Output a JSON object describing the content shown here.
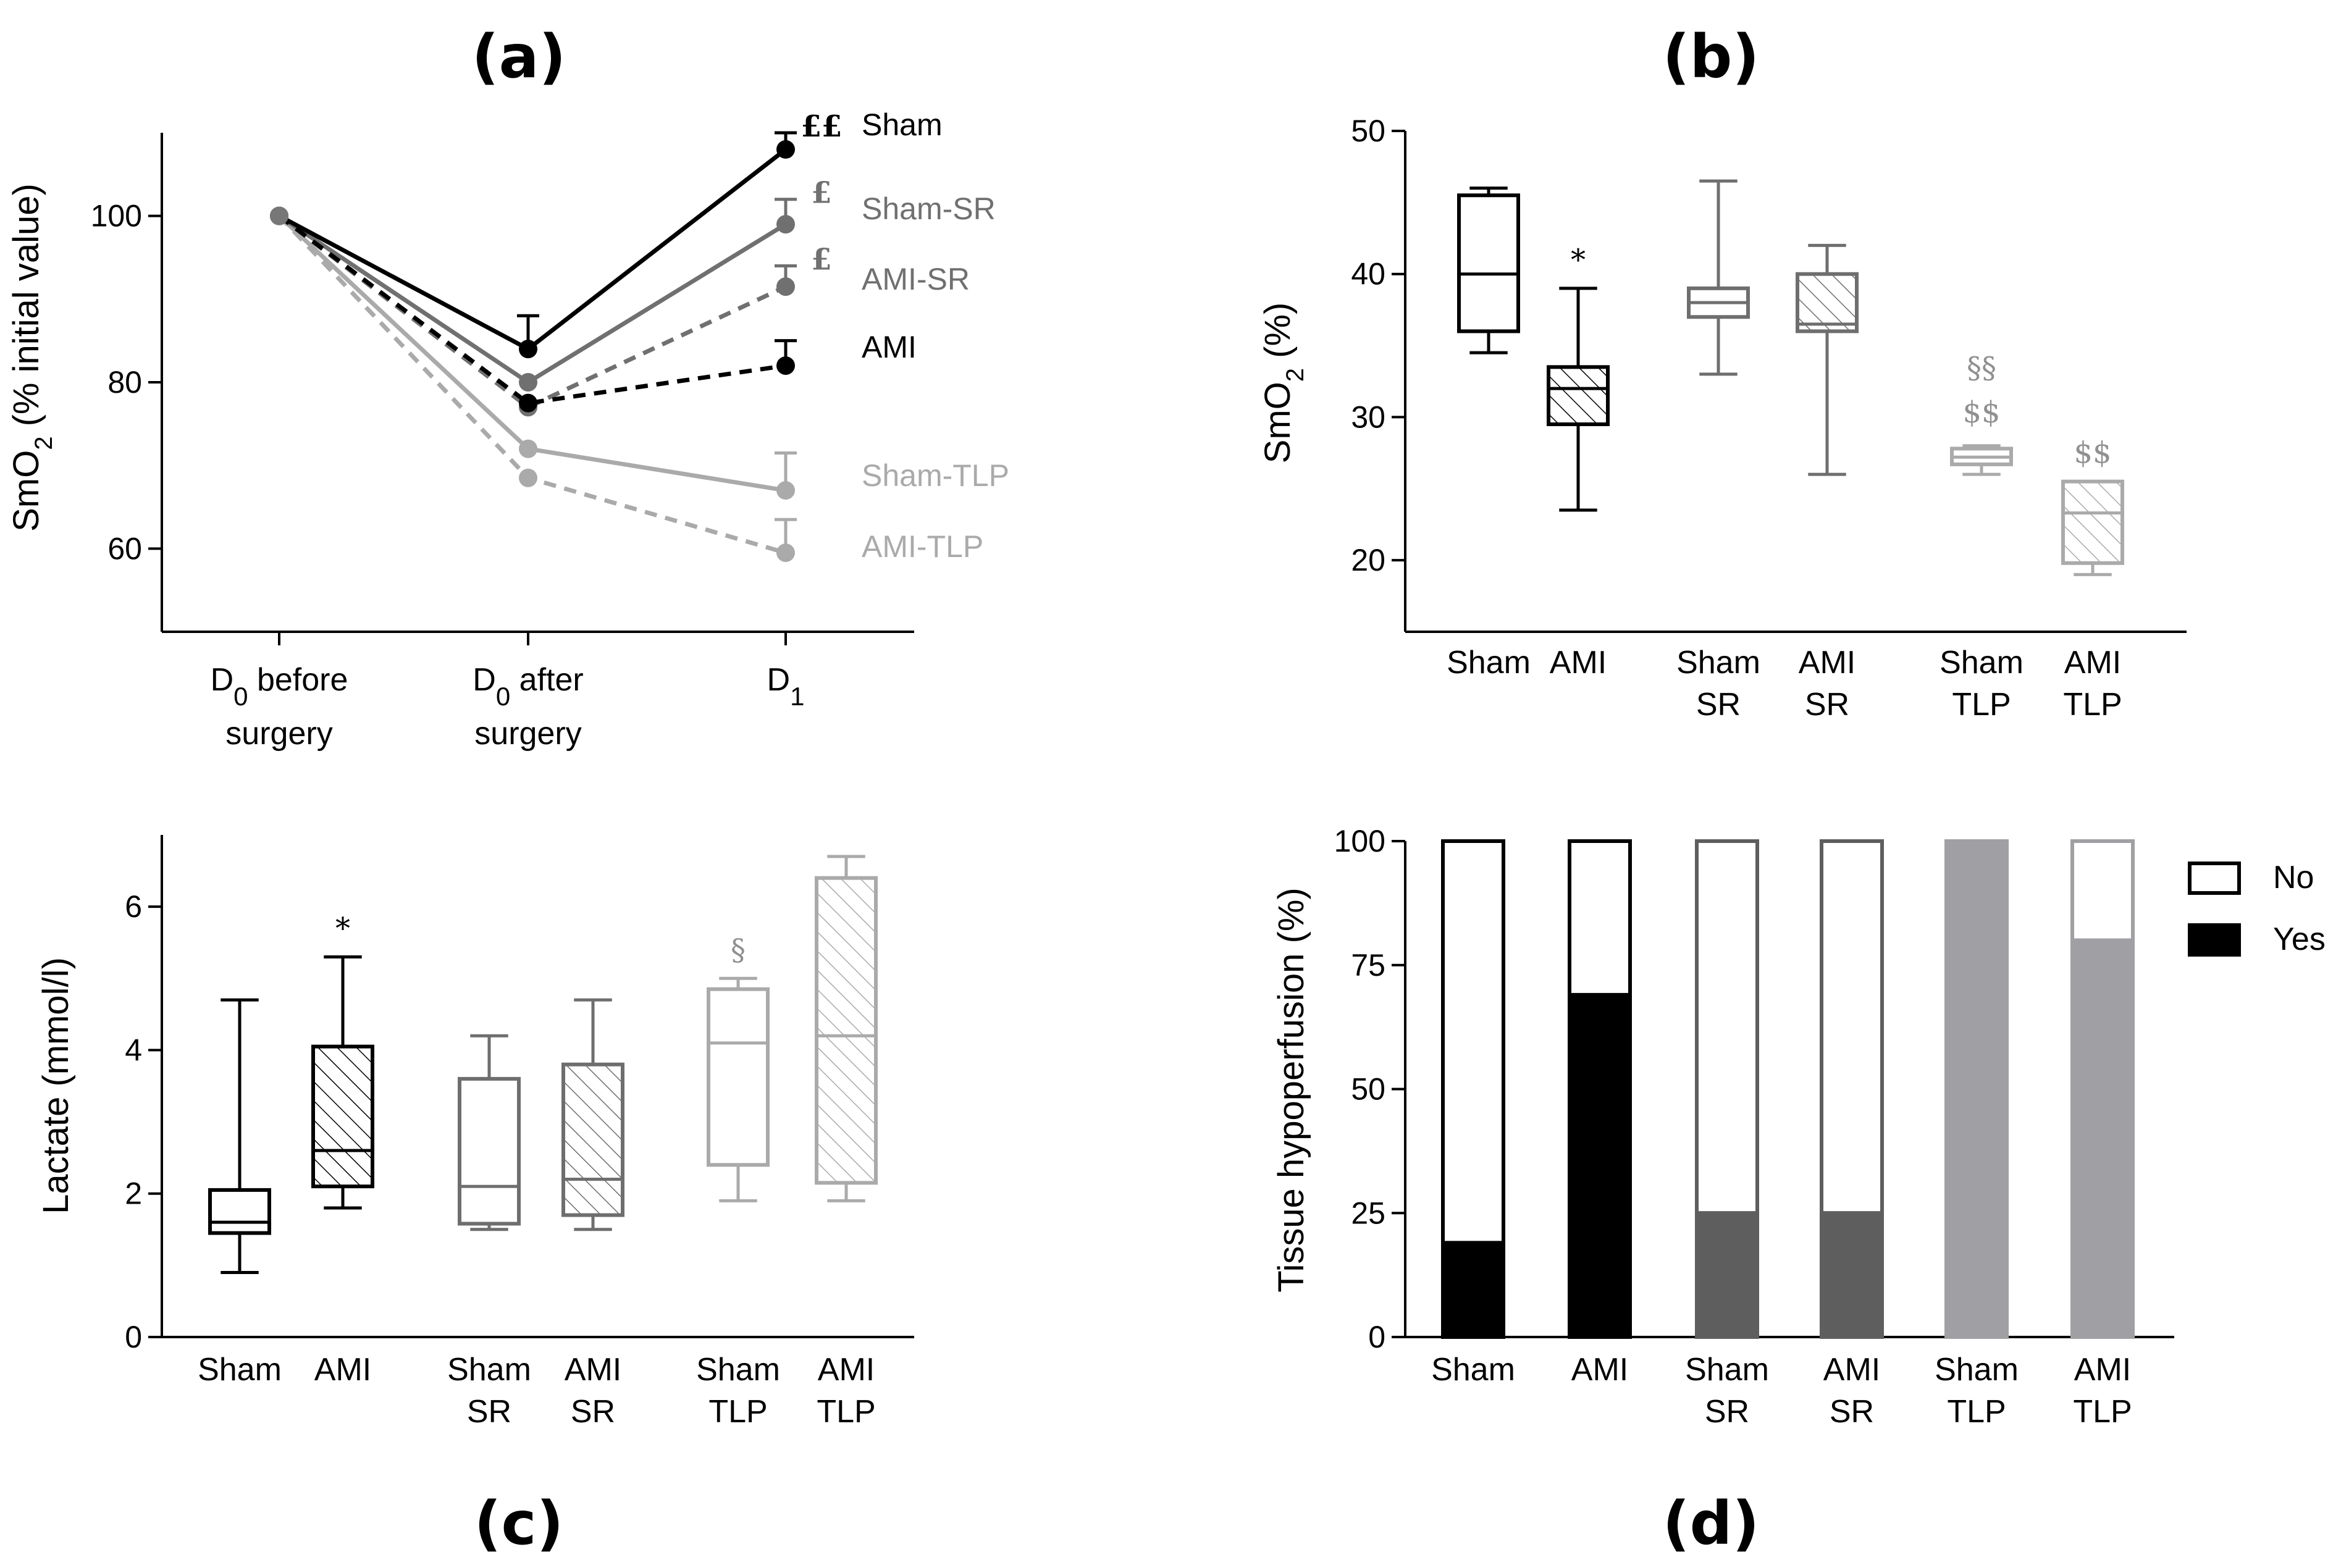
{
  "chart_data": [
    {
      "panel": "(a)",
      "type": "line",
      "ylabel": "SmO2 (% initial value)",
      "ylabel_main": "SmO",
      "ylabel_sub": "2",
      "ylabel_rest": " (% initial value)",
      "ylim": [
        50,
        110
      ],
      "yticks": [
        60,
        80,
        100
      ],
      "categories": [
        {
          "l1a": "D",
          "l1sub": "0",
          "l1b": " before",
          "l2": "surgery"
        },
        {
          "l1a": "D",
          "l1sub": "0",
          "l1b": " after",
          "l2": "surgery"
        },
        {
          "l1a": "D",
          "l1sub": "1",
          "l1b": "",
          "l2": ""
        }
      ],
      "series": [
        {
          "name": "Sham",
          "color": "#000000",
          "dash": false,
          "values": [
            100,
            84,
            108
          ],
          "errors": [
            0,
            4,
            2
          ],
          "annotation": "££"
        },
        {
          "name": "Sham-SR",
          "color": "#707070",
          "dash": false,
          "values": [
            100,
            80,
            99
          ],
          "errors": [
            0,
            0,
            3
          ],
          "annotation": "£"
        },
        {
          "name": "AMI-SR",
          "color": "#707070",
          "dash": true,
          "values": [
            100,
            77,
            91.5
          ],
          "errors": [
            0,
            0,
            2.5
          ],
          "annotation": "£"
        },
        {
          "name": "AMI",
          "color": "#000000",
          "dash": true,
          "values": [
            100,
            77.5,
            82
          ],
          "errors": [
            0,
            0,
            3
          ],
          "annotation": ""
        },
        {
          "name": "Sham-TLP",
          "color": "#aaaaaa",
          "dash": false,
          "values": [
            100,
            72,
            67
          ],
          "errors": [
            0,
            0,
            4.5
          ],
          "annotation": ""
        },
        {
          "name": "AMI-TLP",
          "color": "#aaaaaa",
          "dash": true,
          "values": [
            100,
            68.5,
            59.5
          ],
          "errors": [
            0,
            0,
            4
          ],
          "annotation": ""
        }
      ]
    },
    {
      "panel": "(b)",
      "type": "box",
      "ylabel": "SmO2 (%)",
      "ylabel_main": "SmO",
      "ylabel_sub": "2",
      "ylabel_rest": " (%)",
      "ylim": [
        15,
        50
      ],
      "yticks": [
        20,
        30,
        40,
        50
      ],
      "groups": [
        {
          "l1": "Sham",
          "l2": "",
          "color": "#000000",
          "hatch": false,
          "min": 34.5,
          "q1": 36,
          "median": 40,
          "q3": 45.5,
          "max": 46,
          "annotation": ""
        },
        {
          "l1": "AMI",
          "l2": "",
          "color": "#000000",
          "hatch": true,
          "min": 23.5,
          "q1": 29.5,
          "median": 32,
          "q3": 33.5,
          "max": 39,
          "annotation": "*"
        },
        {
          "l1": "Sham",
          "l2": "SR",
          "color": "#6e6e6e",
          "hatch": false,
          "min": 33,
          "q1": 37,
          "median": 38,
          "q3": 39,
          "max": 46.5,
          "annotation": ""
        },
        {
          "l1": "AMI",
          "l2": "SR",
          "color": "#6e6e6e",
          "hatch": true,
          "min": 26,
          "q1": 36,
          "median": 36.5,
          "q3": 40,
          "max": 42,
          "annotation": ""
        },
        {
          "l1": "Sham",
          "l2": "TLP",
          "color": "#aaaaaa",
          "hatch": false,
          "min": 26,
          "q1": 26.7,
          "median": 27.2,
          "q3": 27.8,
          "max": 28,
          "annotation": "§§",
          "annotation2": "$$"
        },
        {
          "l1": "AMI",
          "l2": "TLP",
          "color": "#aaaaaa",
          "hatch": true,
          "min": 19,
          "q1": 19.8,
          "median": 23.3,
          "q3": 25.5,
          "max": 25.5,
          "annotation": "$$"
        }
      ]
    },
    {
      "panel": "(c)",
      "type": "box",
      "ylabel": "Lactate (mmol/l)",
      "ylim": [
        0,
        7
      ],
      "yticks": [
        0,
        2,
        4,
        6
      ],
      "groups": [
        {
          "l1": "Sham",
          "l2": "",
          "color": "#000000",
          "hatch": false,
          "min": 0.9,
          "q1": 1.45,
          "median": 1.6,
          "q3": 2.05,
          "max": 4.7,
          "annotation": ""
        },
        {
          "l1": "AMI",
          "l2": "",
          "color": "#000000",
          "hatch": true,
          "min": 1.8,
          "q1": 2.1,
          "median": 2.6,
          "q3": 4.05,
          "max": 5.3,
          "annotation": "*"
        },
        {
          "l1": "Sham",
          "l2": "SR",
          "color": "#6e6e6e",
          "hatch": false,
          "min": 1.5,
          "q1": 1.58,
          "median": 2.1,
          "q3": 3.6,
          "max": 4.2,
          "annotation": ""
        },
        {
          "l1": "AMI",
          "l2": "SR",
          "color": "#6e6e6e",
          "hatch": true,
          "min": 1.5,
          "q1": 1.7,
          "median": 2.2,
          "q3": 3.8,
          "max": 4.7,
          "annotation": ""
        },
        {
          "l1": "Sham",
          "l2": "TLP",
          "color": "#aaaaaa",
          "hatch": false,
          "min": 1.9,
          "q1": 2.4,
          "median": 4.1,
          "q3": 4.85,
          "max": 5.0,
          "annotation": "§"
        },
        {
          "l1": "AMI",
          "l2": "TLP",
          "color": "#aaaaaa",
          "hatch": true,
          "min": 1.9,
          "q1": 2.15,
          "median": 4.2,
          "q3": 6.4,
          "max": 6.7,
          "annotation": ""
        }
      ]
    },
    {
      "panel": "(d)",
      "type": "bar",
      "stacked": true,
      "ylabel": "Tissue hypoperfusion (%)",
      "ylim": [
        0,
        100
      ],
      "yticks": [
        0,
        25,
        50,
        75,
        100
      ],
      "legend": [
        {
          "label": "No",
          "fill": "#ffffff"
        },
        {
          "label": "Yes",
          "fill": "#000000"
        }
      ],
      "groups": [
        {
          "l1": "Sham",
          "l2": "",
          "yes": 19,
          "no": 81,
          "yes_color": "#000000",
          "edge": "#000000"
        },
        {
          "l1": "AMI",
          "l2": "",
          "yes": 69,
          "no": 31,
          "yes_color": "#000000",
          "edge": "#000000"
        },
        {
          "l1": "Sham",
          "l2": "SR",
          "yes": 25,
          "no": 75,
          "yes_color": "#5e5e5e",
          "edge": "#5e5e5e"
        },
        {
          "l1": "AMI",
          "l2": "SR",
          "yes": 25,
          "no": 75,
          "yes_color": "#5e5e5e",
          "edge": "#5e5e5e"
        },
        {
          "l1": "Sham",
          "l2": "TLP",
          "yes": 100,
          "no": 0,
          "yes_color": "#a0a0a4",
          "edge": "#a0a0a4"
        },
        {
          "l1": "AMI",
          "l2": "TLP",
          "yes": 80,
          "no": 20,
          "yes_color": "#a0a0a4",
          "edge": "#a0a0a4"
        }
      ]
    }
  ]
}
